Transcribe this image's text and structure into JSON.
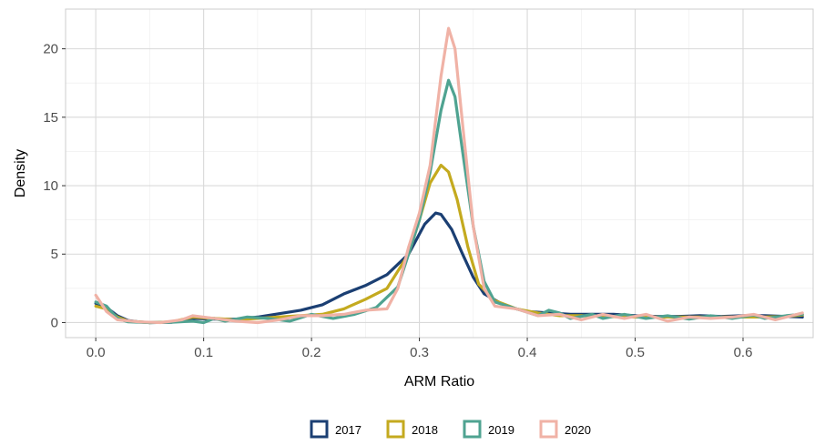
{
  "colors": {
    "2017": "#1b3f73",
    "2018": "#c4aa1f",
    "2019": "#4fa391",
    "2020": "#f0b2a6",
    "grid": "#d9d9d9",
    "panel_border": "#cccccc"
  },
  "chart_data": {
    "type": "line",
    "title": "",
    "xlabel": "ARM Ratio",
    "ylabel": "Density",
    "xlim": [
      -0.028,
      0.665
    ],
    "ylim": [
      -1.1,
      22.9
    ],
    "x_ticks": [
      "0.0",
      "0.1",
      "0.2",
      "0.3",
      "0.4",
      "0.5",
      "0.6"
    ],
    "x_tick_values": [
      0.0,
      0.1,
      0.2,
      0.3,
      0.4,
      0.5,
      0.6
    ],
    "y_ticks": [
      "0",
      "5",
      "10",
      "15",
      "20"
    ],
    "y_tick_values": [
      0,
      5,
      10,
      15,
      20
    ],
    "grid": true,
    "legend_position": "bottom",
    "series": [
      {
        "name": "2017",
        "points": [
          [
            0.0,
            1.4
          ],
          [
            0.01,
            1.1
          ],
          [
            0.02,
            0.5
          ],
          [
            0.03,
            0.15
          ],
          [
            0.04,
            0.05
          ],
          [
            0.05,
            0.0
          ],
          [
            0.07,
            0.02
          ],
          [
            0.09,
            0.3
          ],
          [
            0.11,
            0.25
          ],
          [
            0.13,
            0.25
          ],
          [
            0.15,
            0.4
          ],
          [
            0.17,
            0.65
          ],
          [
            0.19,
            0.9
          ],
          [
            0.21,
            1.3
          ],
          [
            0.23,
            2.1
          ],
          [
            0.25,
            2.7
          ],
          [
            0.27,
            3.5
          ],
          [
            0.29,
            5.0
          ],
          [
            0.305,
            7.2
          ],
          [
            0.315,
            8.0
          ],
          [
            0.32,
            7.9
          ],
          [
            0.33,
            6.8
          ],
          [
            0.34,
            5.0
          ],
          [
            0.35,
            3.3
          ],
          [
            0.36,
            2.1
          ],
          [
            0.38,
            1.2
          ],
          [
            0.4,
            0.8
          ],
          [
            0.42,
            0.7
          ],
          [
            0.44,
            0.6
          ],
          [
            0.46,
            0.6
          ],
          [
            0.48,
            0.6
          ],
          [
            0.5,
            0.5
          ],
          [
            0.52,
            0.45
          ],
          [
            0.54,
            0.45
          ],
          [
            0.56,
            0.5
          ],
          [
            0.58,
            0.45
          ],
          [
            0.6,
            0.5
          ],
          [
            0.62,
            0.5
          ],
          [
            0.64,
            0.45
          ],
          [
            0.655,
            0.4
          ]
        ]
      },
      {
        "name": "2018",
        "points": [
          [
            0.0,
            1.2
          ],
          [
            0.01,
            1.0
          ],
          [
            0.02,
            0.4
          ],
          [
            0.03,
            0.1
          ],
          [
            0.04,
            0.05
          ],
          [
            0.05,
            0.0
          ],
          [
            0.07,
            0.05
          ],
          [
            0.09,
            0.4
          ],
          [
            0.11,
            0.3
          ],
          [
            0.13,
            0.2
          ],
          [
            0.15,
            0.3
          ],
          [
            0.17,
            0.4
          ],
          [
            0.19,
            0.5
          ],
          [
            0.21,
            0.6
          ],
          [
            0.23,
            1.0
          ],
          [
            0.25,
            1.7
          ],
          [
            0.27,
            2.5
          ],
          [
            0.29,
            5.0
          ],
          [
            0.3,
            7.5
          ],
          [
            0.31,
            10.2
          ],
          [
            0.32,
            11.5
          ],
          [
            0.327,
            11.0
          ],
          [
            0.335,
            9.0
          ],
          [
            0.345,
            5.5
          ],
          [
            0.355,
            2.8
          ],
          [
            0.37,
            1.6
          ],
          [
            0.39,
            1.0
          ],
          [
            0.41,
            0.7
          ],
          [
            0.43,
            0.5
          ],
          [
            0.45,
            0.5
          ],
          [
            0.47,
            0.45
          ],
          [
            0.49,
            0.4
          ],
          [
            0.51,
            0.4
          ],
          [
            0.53,
            0.4
          ],
          [
            0.55,
            0.4
          ],
          [
            0.57,
            0.4
          ],
          [
            0.6,
            0.4
          ],
          [
            0.62,
            0.4
          ],
          [
            0.64,
            0.45
          ],
          [
            0.655,
            0.55
          ]
        ]
      },
      {
        "name": "2019",
        "points": [
          [
            0.0,
            1.5
          ],
          [
            0.01,
            1.2
          ],
          [
            0.02,
            0.3
          ],
          [
            0.03,
            0.05
          ],
          [
            0.05,
            0.0
          ],
          [
            0.07,
            0.02
          ],
          [
            0.09,
            0.1
          ],
          [
            0.1,
            0.0
          ],
          [
            0.11,
            0.3
          ],
          [
            0.12,
            0.1
          ],
          [
            0.14,
            0.4
          ],
          [
            0.16,
            0.3
          ],
          [
            0.18,
            0.1
          ],
          [
            0.2,
            0.6
          ],
          [
            0.22,
            0.3
          ],
          [
            0.24,
            0.6
          ],
          [
            0.26,
            1.1
          ],
          [
            0.28,
            2.6
          ],
          [
            0.29,
            5.0
          ],
          [
            0.3,
            7.5
          ],
          [
            0.31,
            11.0
          ],
          [
            0.32,
            15.5
          ],
          [
            0.327,
            17.7
          ],
          [
            0.333,
            16.5
          ],
          [
            0.34,
            12.5
          ],
          [
            0.35,
            7.0
          ],
          [
            0.36,
            3.0
          ],
          [
            0.37,
            1.5
          ],
          [
            0.39,
            1.0
          ],
          [
            0.41,
            0.5
          ],
          [
            0.42,
            0.9
          ],
          [
            0.43,
            0.7
          ],
          [
            0.44,
            0.3
          ],
          [
            0.46,
            0.6
          ],
          [
            0.47,
            0.3
          ],
          [
            0.49,
            0.6
          ],
          [
            0.51,
            0.3
          ],
          [
            0.53,
            0.5
          ],
          [
            0.55,
            0.25
          ],
          [
            0.57,
            0.5
          ],
          [
            0.59,
            0.3
          ],
          [
            0.61,
            0.55
          ],
          [
            0.62,
            0.3
          ],
          [
            0.64,
            0.5
          ],
          [
            0.655,
            0.6
          ]
        ]
      },
      {
        "name": "2020",
        "points": [
          [
            0.0,
            2.0
          ],
          [
            0.01,
            0.8
          ],
          [
            0.02,
            0.2
          ],
          [
            0.04,
            0.05
          ],
          [
            0.06,
            0.0
          ],
          [
            0.08,
            0.2
          ],
          [
            0.09,
            0.5
          ],
          [
            0.11,
            0.3
          ],
          [
            0.13,
            0.1
          ],
          [
            0.15,
            0.0
          ],
          [
            0.17,
            0.2
          ],
          [
            0.19,
            0.5
          ],
          [
            0.21,
            0.5
          ],
          [
            0.23,
            0.6
          ],
          [
            0.25,
            0.9
          ],
          [
            0.27,
            1.0
          ],
          [
            0.28,
            2.5
          ],
          [
            0.29,
            5.5
          ],
          [
            0.3,
            8.0
          ],
          [
            0.31,
            11.5
          ],
          [
            0.32,
            18.0
          ],
          [
            0.327,
            21.5
          ],
          [
            0.333,
            20.0
          ],
          [
            0.34,
            14.5
          ],
          [
            0.35,
            7.0
          ],
          [
            0.36,
            2.5
          ],
          [
            0.37,
            1.2
          ],
          [
            0.39,
            1.0
          ],
          [
            0.41,
            0.5
          ],
          [
            0.43,
            0.6
          ],
          [
            0.45,
            0.2
          ],
          [
            0.47,
            0.6
          ],
          [
            0.49,
            0.3
          ],
          [
            0.51,
            0.6
          ],
          [
            0.53,
            0.1
          ],
          [
            0.55,
            0.4
          ],
          [
            0.57,
            0.3
          ],
          [
            0.59,
            0.4
          ],
          [
            0.61,
            0.6
          ],
          [
            0.63,
            0.2
          ],
          [
            0.655,
            0.7
          ]
        ]
      }
    ]
  }
}
